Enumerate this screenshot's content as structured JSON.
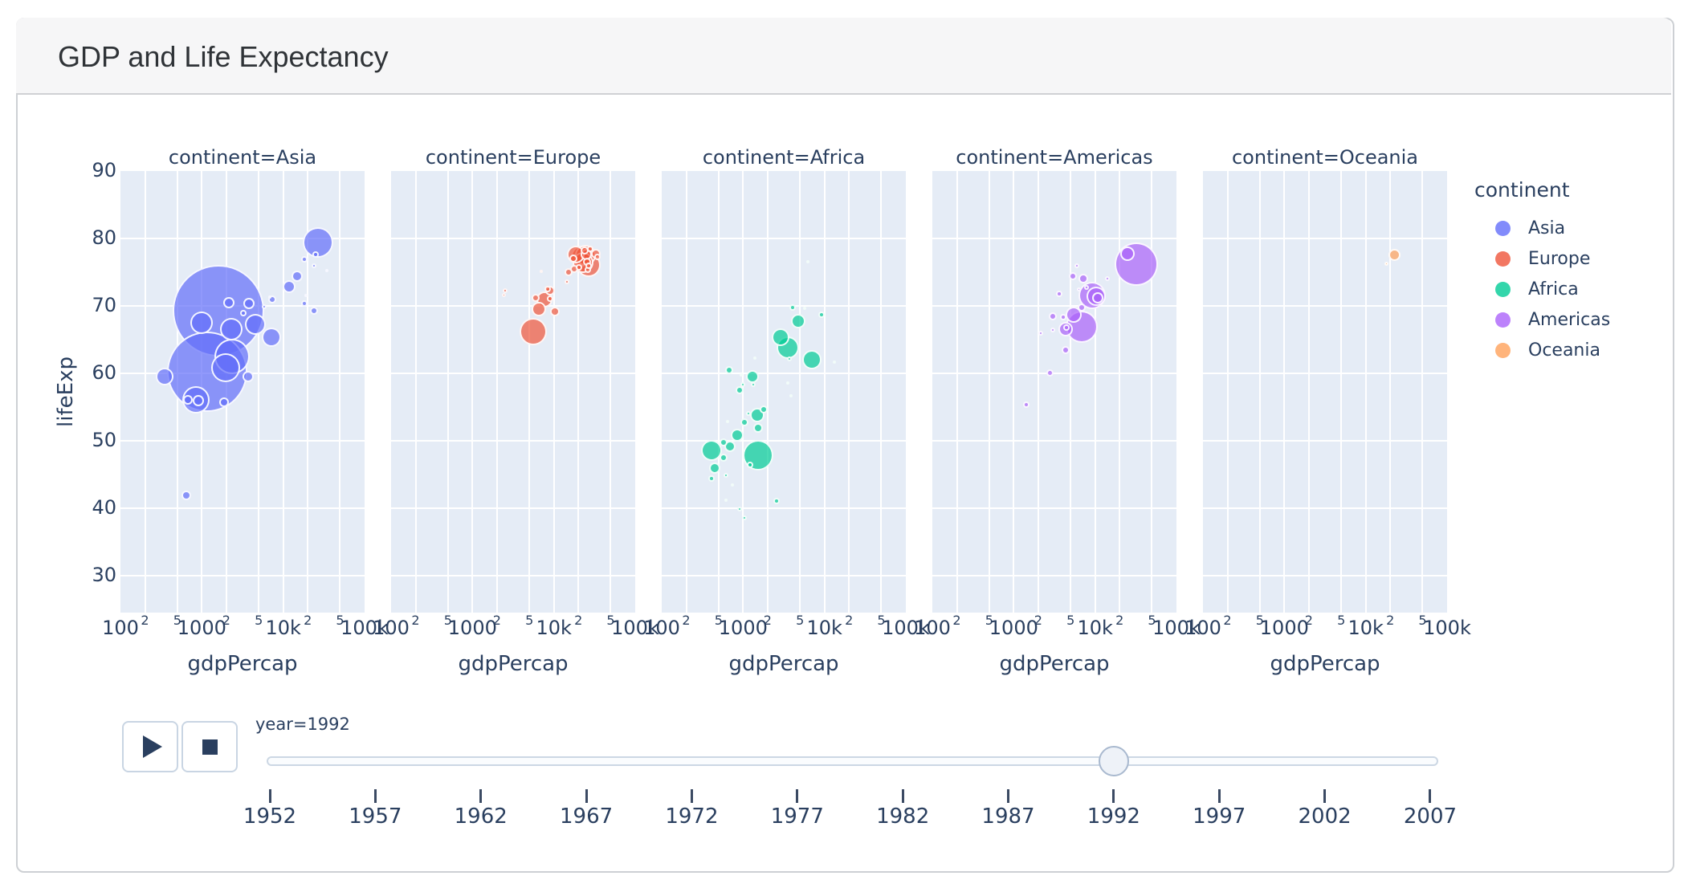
{
  "header": {
    "title": "GDP and Life Expectancy"
  },
  "colors": {
    "panel_bg": "#E5ECF6",
    "grid": "#ffffff",
    "text": "#2a3f5f",
    "marker_opacity": 0.7
  },
  "chart_data": {
    "type": "scatter",
    "subtype": "faceted-bubble-log-x",
    "xlabel": "gdpPercap",
    "ylabel": "lifeExp",
    "x_log": true,
    "x_range": [
      100,
      100000
    ],
    "y_range": [
      24.5,
      90
    ],
    "y_ticks": [
      "90",
      "80",
      "70",
      "60",
      "50",
      "40",
      "30"
    ],
    "x_ticks": [
      {
        "value": 100,
        "label": "100",
        "minor": false
      },
      {
        "value": 200,
        "label": "2",
        "minor": true
      },
      {
        "value": 500,
        "label": "5",
        "minor": true
      },
      {
        "value": 1000,
        "label": "1000",
        "minor": false
      },
      {
        "value": 2000,
        "label": "2",
        "minor": true
      },
      {
        "value": 5000,
        "label": "5",
        "minor": true
      },
      {
        "value": 10000,
        "label": "10k",
        "minor": false
      },
      {
        "value": 20000,
        "label": "2",
        "minor": true
      },
      {
        "value": 50000,
        "label": "5",
        "minor": true
      },
      {
        "value": 100000,
        "label": "100k",
        "minor": false
      }
    ],
    "point_format": [
      "gdpPercap",
      "lifeExp",
      "radius_px"
    ],
    "facets": [
      {
        "label": "continent=Asia",
        "continent": "Asia",
        "color": "#636EFA",
        "points": [
          [
            26800,
            79.4,
            19
          ],
          [
            24800,
            77.6,
            4
          ],
          [
            18000,
            76.9,
            4
          ],
          [
            24000,
            75.9,
            3
          ],
          [
            34500,
            75.2,
            2
          ],
          [
            14800,
            74.4,
            7
          ],
          [
            11800,
            72.9,
            8
          ],
          [
            19000,
            71.6,
            2
          ],
          [
            7400,
            71.0,
            5
          ],
          [
            6800,
            71.3,
            2
          ],
          [
            2150,
            70.5,
            7
          ],
          [
            3800,
            70.3,
            7
          ],
          [
            18100,
            70.3,
            4
          ],
          [
            5900,
            69.9,
            3
          ],
          [
            23800,
            69.3,
            5
          ],
          [
            3250,
            68.9,
            4
          ],
          [
            1600,
            69.3,
            57
          ],
          [
            1000,
            67.5,
            14
          ],
          [
            4500,
            67.3,
            13
          ],
          [
            2300,
            66.5,
            14
          ],
          [
            7100,
            65.4,
            12
          ],
          [
            2350,
            62.5,
            22
          ],
          [
            1160,
            60.2,
            50
          ],
          [
            1970,
            60.8,
            18
          ],
          [
            3700,
            59.5,
            7
          ],
          [
            350,
            59.5,
            11
          ],
          [
            840,
            56.0,
            17
          ],
          [
            680,
            56.0,
            6
          ],
          [
            900,
            55.9,
            7
          ],
          [
            1880,
            55.7,
            6
          ],
          [
            650,
            41.9,
            6
          ]
        ]
      },
      {
        "label": "continent=Europe",
        "continent": "Europe",
        "color": "#EF553B",
        "points": [
          [
            2500,
            72.2,
            3
          ],
          [
            2450,
            71.6,
            2.5
          ],
          [
            7700,
            71.0,
            10
          ],
          [
            6000,
            71.2,
            5
          ],
          [
            8900,
            72.2,
            6
          ],
          [
            9000,
            71.1,
            4
          ],
          [
            10400,
            69.2,
            6
          ],
          [
            6600,
            69.5,
            9
          ],
          [
            5600,
            66.2,
            17
          ],
          [
            8400,
            72.5,
            4
          ],
          [
            7000,
            75.1,
            2
          ],
          [
            14400,
            73.6,
            3
          ],
          [
            15000,
            75.0,
            5
          ],
          [
            17500,
            77.0,
            5
          ],
          [
            18600,
            77.6,
            11
          ],
          [
            22000,
            77.4,
            13
          ],
          [
            24700,
            77.5,
            13
          ],
          [
            22700,
            76.4,
            13
          ],
          [
            26500,
            76.1,
            15
          ],
          [
            25000,
            77.6,
            7
          ],
          [
            33000,
            77.7,
            6
          ],
          [
            28000,
            78.4,
            4
          ],
          [
            23900,
            78.2,
            5
          ],
          [
            26400,
            75.3,
            4
          ],
          [
            20600,
            75.7,
            4
          ],
          [
            34000,
            77.3,
            4
          ],
          [
            27000,
            76.0,
            4
          ],
          [
            25600,
            76.5,
            5
          ],
          [
            17600,
            75.5,
            5
          ]
        ]
      },
      {
        "label": "continent=Africa",
        "continent": "Africa",
        "color": "#00CC96",
        "points": [
          [
            6300,
            76.6,
            2
          ],
          [
            4100,
            69.8,
            4
          ],
          [
            5650,
            69.6,
            2
          ],
          [
            9300,
            68.7,
            4
          ],
          [
            4800,
            67.7,
            9
          ],
          [
            2900,
            65.4,
            11
          ],
          [
            3550,
            63.8,
            14
          ],
          [
            7000,
            62.0,
            12
          ],
          [
            3700,
            62.1,
            3
          ],
          [
            13200,
            61.6,
            2
          ],
          [
            1400,
            62.2,
            2
          ],
          [
            680,
            60.5,
            5
          ],
          [
            950,
            59.7,
            2
          ],
          [
            1310,
            59.5,
            8
          ],
          [
            1340,
            58.3,
            3
          ],
          [
            990,
            58.3,
            3
          ],
          [
            900,
            57.5,
            5
          ],
          [
            3500,
            58.6,
            1.5
          ],
          [
            3900,
            56.6,
            2
          ],
          [
            1790,
            54.6,
            5
          ],
          [
            1480,
            53.8,
            9
          ],
          [
            1170,
            54.0,
            3
          ],
          [
            1040,
            52.7,
            5
          ],
          [
            650,
            52.8,
            2
          ],
          [
            1530,
            51.9,
            6
          ],
          [
            845,
            50.8,
            8
          ],
          [
            570,
            49.8,
            5
          ],
          [
            690,
            49.1,
            7
          ],
          [
            405,
            48.5,
            13
          ],
          [
            580,
            47.5,
            5
          ],
          [
            1530,
            47.9,
            19
          ],
          [
            1220,
            46.4,
            4
          ],
          [
            450,
            45.9,
            7
          ],
          [
            615,
            44.9,
            3
          ],
          [
            405,
            44.4,
            4
          ],
          [
            730,
            43.5,
            1.5
          ],
          [
            2600,
            41.0,
            4
          ],
          [
            615,
            41.2,
            1.5
          ],
          [
            900,
            39.9,
            3
          ],
          [
            1050,
            38.6,
            3
          ]
        ]
      },
      {
        "label": "continent=Americas",
        "continent": "Americas",
        "color": "#AB63FA",
        "points": [
          [
            31800,
            76.2,
            27
          ],
          [
            25000,
            77.7,
            9
          ],
          [
            6000,
            75.9,
            3
          ],
          [
            5300,
            74.4,
            5
          ],
          [
            7200,
            74.1,
            6
          ],
          [
            14300,
            74.0,
            3
          ],
          [
            6350,
            72.4,
            2.5
          ],
          [
            7850,
            72.7,
            3
          ],
          [
            10200,
            71.4,
            12
          ],
          [
            9200,
            71.6,
            17
          ],
          [
            10700,
            71.2,
            7
          ],
          [
            3590,
            71.8,
            4
          ],
          [
            6850,
            69.7,
            5
          ],
          [
            5500,
            68.7,
            10
          ],
          [
            3000,
            68.5,
            5
          ],
          [
            4100,
            68.3,
            4
          ],
          [
            6800,
            66.9,
            20
          ],
          [
            4350,
            66.5,
            9
          ],
          [
            4450,
            66.8,
            4
          ],
          [
            3000,
            66.4,
            3
          ],
          [
            2150,
            65.9,
            3
          ],
          [
            4300,
            63.4,
            5
          ],
          [
            2800,
            60.0,
            4.5
          ],
          [
            1420,
            55.4,
            4
          ]
        ]
      },
      {
        "label": "continent=Oceania",
        "continent": "Oceania",
        "color": "#FFA15A",
        "points": [
          [
            22500,
            77.6,
            7.5
          ],
          [
            17800,
            76.3,
            2.5
          ]
        ]
      }
    ],
    "legend": {
      "title": "continent",
      "items": [
        {
          "label": "Asia",
          "color": "#636EFA"
        },
        {
          "label": "Europe",
          "color": "#EF553B"
        },
        {
          "label": "Africa",
          "color": "#00CC96"
        },
        {
          "label": "Americas",
          "color": "#AB63FA"
        },
        {
          "label": "Oceania",
          "color": "#FFA15A"
        }
      ]
    }
  },
  "controls": {
    "play": "play",
    "stop": "stop",
    "current_value_label": "year=1992"
  },
  "slider": {
    "years": [
      "1952",
      "1957",
      "1962",
      "1967",
      "1972",
      "1977",
      "1982",
      "1987",
      "1992",
      "1997",
      "2002",
      "2007"
    ],
    "current_year": "1992"
  }
}
